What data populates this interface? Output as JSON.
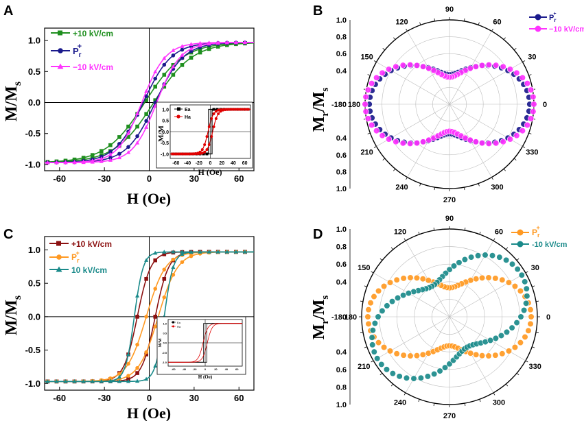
{
  "chart_data": [
    {
      "panel": "A",
      "type": "line",
      "xlabel": "H (Oe)",
      "ylabel": "M/Ms",
      "xlim": [
        -70,
        70
      ],
      "ylim": [
        -1.1,
        1.2
      ],
      "xticks": [
        -60,
        -30,
        0,
        30,
        60
      ],
      "yticks": [
        -1.0,
        -0.5,
        0.0,
        0.5,
        1.0
      ],
      "loop_width_note": "hysteresis loops",
      "series": [
        {
          "name": "+10 kV/cm",
          "color": "#1f8f1f",
          "marker": "square",
          "hc": 3,
          "w": 26,
          "shift": 0
        },
        {
          "name": "Pr+",
          "color": "#1a1a8c",
          "marker": "circle",
          "hc": 4,
          "w": 19,
          "shift": 0
        },
        {
          "name": "-10 kV/cm",
          "color": "#ff33ff",
          "marker": "triangle",
          "hc": 5,
          "w": 16,
          "shift": 0
        }
      ],
      "legend": {
        "label_1": "+10 kV/cm",
        "label_2_main": "P",
        "label_2_sub": "r",
        "label_2_sup": "+",
        "label_3": "−10 kV/cm"
      },
      "inset": {
        "xlabel": "H (Oe)",
        "ylabel": "M/M",
        "xticks": [
          -60,
          -40,
          -20,
          0,
          20,
          40,
          60
        ],
        "yticks": [
          "1.0",
          "0.5",
          "0.0",
          "-0.5",
          "-1.0"
        ],
        "series": [
          {
            "name": "Ea",
            "color": "#000000",
            "marker": "square"
          },
          {
            "name": "Ha",
            "color": "#e00000",
            "marker": "circle"
          }
        ]
      }
    },
    {
      "panel": "B",
      "type": "polar",
      "ylabel": "Mr/Ms",
      "angles_deg": [
        90,
        60,
        30,
        0,
        330,
        300,
        270,
        240,
        210,
        180,
        150,
        120
      ],
      "radial_ticks": [
        "1.0",
        "0.8",
        "0.6",
        "0.4"
      ],
      "radial_ticks_lower": [
        "0.4",
        "0.6",
        "0.8",
        "1.0"
      ],
      "series": [
        {
          "name": "Pr+",
          "color": "#1a1a8c",
          "a": 0.35,
          "b": 0.6,
          "phase": 0
        },
        {
          "name": "-10 kV/cm",
          "color": "#ff33ff",
          "a": 0.32,
          "b": 0.68,
          "phase": 0
        }
      ],
      "legend": {
        "label_1_main": "P",
        "label_1_sub": "r",
        "label_1_sup": "+",
        "label_2": "−10 kV/cm"
      }
    },
    {
      "panel": "C",
      "type": "line",
      "xlabel": "H (Oe)",
      "ylabel": "M/Ms",
      "xlim": [
        -70,
        70
      ],
      "ylim": [
        -1.1,
        1.2
      ],
      "xticks": [
        -60,
        -30,
        0,
        30,
        60
      ],
      "yticks": [
        -1.0,
        -0.5,
        0.0,
        0.5,
        1.0
      ],
      "series": [
        {
          "name": "+10 kV/cm",
          "color": "#8b1010",
          "marker": "square",
          "hc": 6,
          "w": 9,
          "shift": -2
        },
        {
          "name": "Pr+",
          "color": "#ff9922",
          "marker": "circle",
          "hc": 4,
          "w": 13,
          "shift": 2
        },
        {
          "name": "10 kV/cm",
          "color": "#1a8a8a",
          "marker": "triangle",
          "hc": 10,
          "w": 6,
          "shift": 0
        }
      ],
      "legend": {
        "label_1": "+10 kV/cm",
        "label_2_main": "P",
        "label_2_sub": "r",
        "label_2_sup": "+",
        "label_3": "10 kV/cm"
      },
      "inset": {
        "xlabel": "H (Oe)",
        "ylabel": "M/M",
        "xticks": [
          -60,
          -40,
          -20,
          0,
          20,
          40,
          60
        ],
        "yticks": [
          "1.0",
          "0.5",
          "0.0",
          "-0.5",
          "-1.0"
        ],
        "series": [
          {
            "name": "Ea",
            "color": "#000000",
            "marker": "square"
          },
          {
            "name": "Ha",
            "color": "#e00000",
            "marker": "circle"
          }
        ]
      }
    },
    {
      "panel": "D",
      "type": "polar",
      "ylabel": "Mr/Ms",
      "angles_deg": [
        90,
        60,
        30,
        0,
        330,
        300,
        270,
        240,
        210,
        180,
        150,
        120
      ],
      "radial_ticks": [
        "1.0",
        "0.8",
        "0.6",
        "0.4"
      ],
      "radial_ticks_lower": [
        "0.4",
        "0.6",
        "0.8",
        "1.0"
      ],
      "series": [
        {
          "name": "Pr+",
          "color": "#ff9922",
          "a": 0.33,
          "b": 0.6,
          "phase": 0
        },
        {
          "name": "-10 kV/cm",
          "color": "#1a8a8a",
          "a": 0.4,
          "b": 0.55,
          "phase": 30
        }
      ],
      "legend": {
        "label_1_main": "P",
        "label_1_sub": "r",
        "label_1_sup": "+",
        "label_2": "-10 kV/cm"
      }
    }
  ],
  "panels": {
    "a": {
      "letter": "A"
    },
    "b": {
      "letter": "B"
    },
    "c": {
      "letter": "C"
    },
    "d": {
      "letter": "D"
    }
  }
}
